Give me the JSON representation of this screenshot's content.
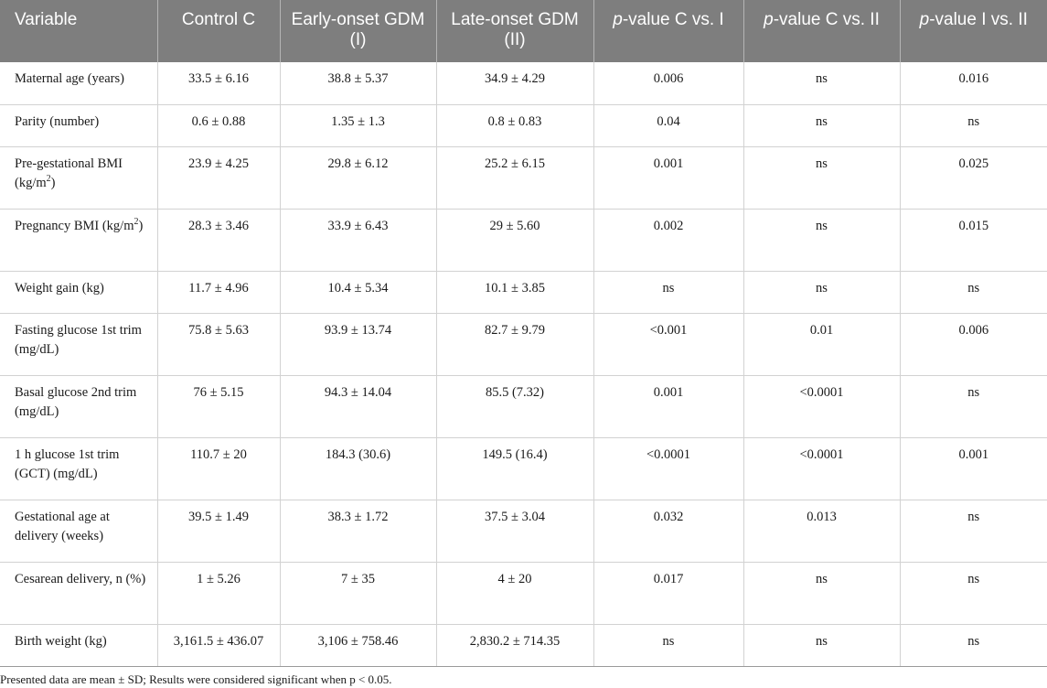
{
  "table": {
    "headers": [
      {
        "prefix": "",
        "text": "Variable"
      },
      {
        "prefix": "",
        "text": "Control C"
      },
      {
        "prefix": "",
        "text": "Early-onset GDM (I)"
      },
      {
        "prefix": "",
        "text": "Late-onset GDM (II)"
      },
      {
        "prefix": "p",
        "text": "-value C vs. I"
      },
      {
        "prefix": "p",
        "text": "-value C vs. II"
      },
      {
        "prefix": "p",
        "text": "-value I vs. II"
      }
    ],
    "rows": [
      {
        "variable": "Maternal age (years)",
        "sup": "",
        "after": "",
        "cells": [
          "33.5 ± 6.16",
          "38.8 ± 5.37",
          "34.9 ± 4.29",
          "0.006",
          "ns",
          "0.016"
        ]
      },
      {
        "variable": "Parity (number)",
        "sup": "",
        "after": "",
        "cells": [
          "0.6 ± 0.88",
          "1.35 ± 1.3",
          "0.8 ± 0.83",
          "0.04",
          "ns",
          "ns"
        ]
      },
      {
        "variable": "Pre-gestational BMI (kg/m",
        "sup": "2",
        "after": ")",
        "cells": [
          "23.9 ± 4.25",
          "29.8 ± 6.12",
          "25.2 ± 6.15",
          "0.001",
          "ns",
          "0.025"
        ]
      },
      {
        "variable": "Pregnancy BMI (kg/m",
        "sup": "2",
        "after": ")",
        "cells": [
          "28.3 ± 3.46",
          "33.9 ± 6.43",
          "29 ± 5.60",
          "0.002",
          "ns",
          "0.015"
        ]
      },
      {
        "variable": "Weight gain (kg)",
        "sup": "",
        "after": "",
        "cells": [
          "11.7 ± 4.96",
          "10.4 ± 5.34",
          "10.1 ± 3.85",
          "ns",
          "ns",
          "ns"
        ]
      },
      {
        "variable": "Fasting glucose 1st trim (mg/dL)",
        "sup": "",
        "after": "",
        "cells": [
          "75.8 ± 5.63",
          "93.9 ± 13.74",
          "82.7 ± 9.79",
          "<0.001",
          "0.01",
          "0.006"
        ]
      },
      {
        "variable": "Basal glucose 2nd trim (mg/dL)",
        "sup": "",
        "after": "",
        "cells": [
          "76 ± 5.15",
          "94.3 ± 14.04",
          "85.5 (7.32)",
          "0.001",
          "<0.0001",
          "ns"
        ]
      },
      {
        "variable": "1 h glucose 1st trim (GCT) (mg/dL)",
        "sup": "",
        "after": "",
        "cells": [
          "110.7 ± 20",
          "184.3 (30.6)",
          "149.5 (16.4)",
          "<0.0001",
          "<0.0001",
          "0.001"
        ]
      },
      {
        "variable": "Gestational age at delivery (weeks)",
        "sup": "",
        "after": "",
        "cells": [
          "39.5 ± 1.49",
          "38.3 ± 1.72",
          "37.5 ± 3.04",
          "0.032",
          "0.013",
          "ns"
        ]
      },
      {
        "variable": "Cesarean delivery, n (%)",
        "sup": "",
        "after": "",
        "cells": [
          "1 ± 5.26",
          "7 ± 35",
          "4 ± 20",
          "0.017",
          "ns",
          "ns"
        ]
      },
      {
        "variable": "Birth weight (kg)",
        "sup": "",
        "after": "",
        "cells": [
          "3,161.5 ± 436.07",
          "3,106 ± 758.46",
          "2,830.2 ± 714.35",
          "ns",
          "ns",
          "ns"
        ]
      }
    ]
  },
  "footnote": "Presented data are mean ± SD; Results were considered significant when p < 0.05.",
  "colors": {
    "header_bg": "#7e7e7e",
    "header_text": "#ffffff",
    "grid": "#d2d2d2"
  }
}
